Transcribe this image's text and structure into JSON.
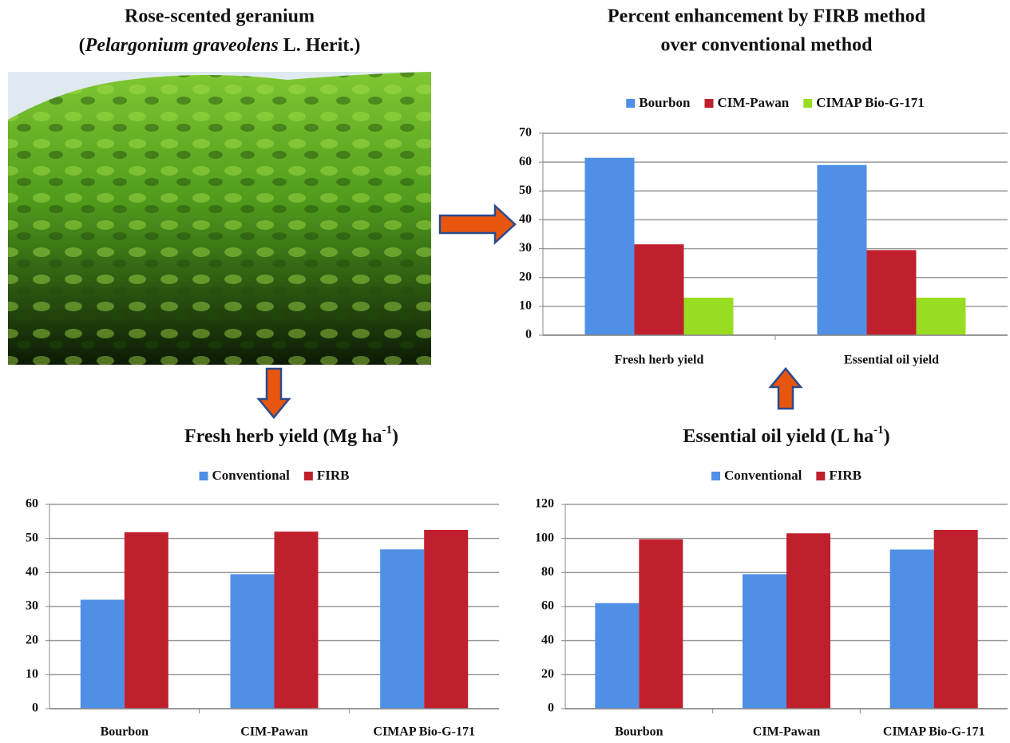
{
  "photo": {
    "title": "Rose-scented geranium",
    "subtitle_open": "(",
    "subtitle_italic": "Pelargonium graveolens",
    "subtitle_rest": " L. Herit.)"
  },
  "chart_data": [
    {
      "type": "bar",
      "title": [
        "Percent enhancement by FIRB method",
        "over conventional method"
      ],
      "categories": [
        "Fresh herb yield",
        "Essential oil yield"
      ],
      "series": [
        {
          "name": "Bourbon",
          "color": "#4f8fe6",
          "values": [
            61.5,
            59
          ]
        },
        {
          "name": "CIM-Pawan",
          "color": "#c0202e",
          "values": [
            31.5,
            29.5
          ]
        },
        {
          "name": "CIMAP Bio-G-171",
          "color": "#99dd22",
          "values": [
            13,
            13
          ]
        }
      ],
      "ylim": [
        0,
        70
      ],
      "yticks": [
        0,
        10,
        20,
        30,
        40,
        50,
        60,
        70
      ],
      "grid": true,
      "legend": "top"
    },
    {
      "type": "bar",
      "title": "Fresh herb yield (Mg ha",
      "title_superscript": "-1",
      "title_end": ")",
      "categories": [
        "Bourbon",
        "CIM-Pawan",
        "CIMAP Bio-G-171"
      ],
      "series": [
        {
          "name": "Conventional",
          "color": "#4f8fe6",
          "values": [
            32,
            39.5,
            46.8
          ]
        },
        {
          "name": "FIRB",
          "color": "#c0202e",
          "values": [
            51.8,
            52,
            52.5
          ]
        }
      ],
      "ylim": [
        0,
        60
      ],
      "yticks": [
        0,
        10,
        20,
        30,
        40,
        50,
        60
      ],
      "grid": true,
      "legend": "top"
    },
    {
      "type": "bar",
      "title": "Essential oil yield (L ha",
      "title_superscript": "-1",
      "title_end": ")",
      "categories": [
        "Bourbon",
        "CIM-Pawan",
        "CIMAP Bio-G-171"
      ],
      "series": [
        {
          "name": "Conventional",
          "color": "#4f8fe6",
          "values": [
            62,
            79,
            93.5
          ]
        },
        {
          "name": "FIRB",
          "color": "#c0202e",
          "values": [
            99.5,
            103,
            105
          ]
        }
      ],
      "ylim": [
        0,
        120
      ],
      "yticks": [
        0,
        20,
        40,
        60,
        80,
        100,
        120
      ],
      "grid": true,
      "legend": "top"
    }
  ]
}
